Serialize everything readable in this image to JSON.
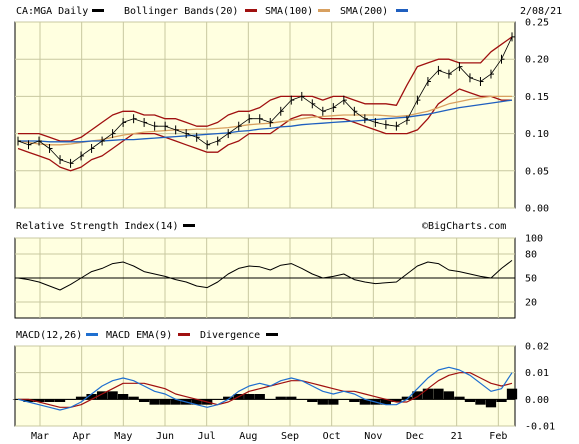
{
  "chart_data": [
    {
      "type": "line",
      "title": "CA:MGA Daily",
      "date": "2/08/21",
      "legend": [
        {
          "name": "Bollinger Bands(20)",
          "color": "#000000"
        },
        {
          "name": "SMA(100)",
          "color": "#a01010"
        },
        {
          "name": "SMA(200)",
          "color": "#d8a060"
        },
        {
          "name": "",
          "color": "#1f5fbf"
        }
      ],
      "ylim": [
        0.0,
        0.25
      ],
      "y_ticks": [
        "0.25",
        "0.20",
        "0.15",
        "0.10",
        "0.05",
        "0.00"
      ],
      "y_tick_values": [
        0.25,
        0.2,
        0.15,
        0.1,
        0.05,
        0.0
      ],
      "x_months": [
        "Mar",
        "Apr",
        "May",
        "Jun",
        "Jul",
        "Aug",
        "Sep",
        "Oct",
        "Nov",
        "Dec",
        "21",
        "Feb"
      ],
      "price": [
        0.09,
        0.085,
        0.09,
        0.08,
        0.065,
        0.06,
        0.07,
        0.08,
        0.09,
        0.1,
        0.115,
        0.12,
        0.115,
        0.11,
        0.11,
        0.105,
        0.1,
        0.095,
        0.085,
        0.09,
        0.1,
        0.11,
        0.12,
        0.12,
        0.115,
        0.13,
        0.145,
        0.15,
        0.14,
        0.13,
        0.135,
        0.145,
        0.13,
        0.12,
        0.115,
        0.112,
        0.11,
        0.118,
        0.145,
        0.17,
        0.185,
        0.18,
        0.19,
        0.175,
        0.17,
        0.18,
        0.2,
        0.23
      ],
      "upper_band": [
        0.1,
        0.1,
        0.1,
        0.095,
        0.09,
        0.09,
        0.095,
        0.105,
        0.115,
        0.125,
        0.13,
        0.13,
        0.125,
        0.125,
        0.12,
        0.12,
        0.115,
        0.11,
        0.11,
        0.115,
        0.125,
        0.13,
        0.13,
        0.135,
        0.145,
        0.15,
        0.15,
        0.15,
        0.15,
        0.145,
        0.15,
        0.15,
        0.145,
        0.14,
        0.14,
        0.14,
        0.138,
        0.165,
        0.19,
        0.195,
        0.2,
        0.2,
        0.195,
        0.195,
        0.195,
        0.21,
        0.22,
        0.23
      ],
      "lower_band": [
        0.08,
        0.075,
        0.07,
        0.065,
        0.055,
        0.05,
        0.055,
        0.065,
        0.07,
        0.08,
        0.09,
        0.1,
        0.1,
        0.1,
        0.095,
        0.09,
        0.085,
        0.08,
        0.075,
        0.075,
        0.085,
        0.09,
        0.1,
        0.1,
        0.1,
        0.11,
        0.12,
        0.125,
        0.125,
        0.12,
        0.12,
        0.12,
        0.115,
        0.11,
        0.105,
        0.1,
        0.1,
        0.1,
        0.105,
        0.12,
        0.14,
        0.15,
        0.16,
        0.155,
        0.15,
        0.15,
        0.145,
        0.145
      ],
      "sma100": [
        0.09,
        0.088,
        0.086,
        0.085,
        0.085,
        0.086,
        0.088,
        0.09,
        0.092,
        0.095,
        0.098,
        0.1,
        0.102,
        0.103,
        0.104,
        0.105,
        0.105,
        0.106,
        0.106,
        0.107,
        0.108,
        0.11,
        0.112,
        0.113,
        0.114,
        0.116,
        0.118,
        0.12,
        0.122,
        0.123,
        0.124,
        0.125,
        0.125,
        0.125,
        0.125,
        0.124,
        0.123,
        0.124,
        0.127,
        0.13,
        0.135,
        0.14,
        0.143,
        0.146,
        0.148,
        0.15,
        0.15,
        0.15
      ],
      "sma200": [
        0.09,
        0.09,
        0.09,
        0.089,
        0.089,
        0.089,
        0.089,
        0.09,
        0.09,
        0.091,
        0.092,
        0.092,
        0.093,
        0.094,
        0.095,
        0.096,
        0.097,
        0.098,
        0.099,
        0.1,
        0.101,
        0.103,
        0.104,
        0.106,
        0.107,
        0.109,
        0.11,
        0.112,
        0.113,
        0.114,
        0.115,
        0.116,
        0.117,
        0.118,
        0.119,
        0.12,
        0.121,
        0.122,
        0.124,
        0.126,
        0.129,
        0.132,
        0.135,
        0.137,
        0.139,
        0.141,
        0.143,
        0.145
      ]
    },
    {
      "type": "line",
      "title": "Relative Strength Index(14)",
      "watermark": "©BigCharts.com",
      "ylim": [
        0,
        100
      ],
      "y_ticks": [
        "100",
        "80",
        "50",
        "20"
      ],
      "y_tick_values": [
        100,
        80,
        50,
        20
      ],
      "reference_line": 50,
      "rsi": [
        50,
        48,
        45,
        40,
        35,
        42,
        50,
        58,
        62,
        68,
        70,
        65,
        58,
        55,
        52,
        48,
        45,
        40,
        38,
        45,
        55,
        62,
        65,
        64,
        60,
        66,
        68,
        62,
        55,
        50,
        52,
        55,
        48,
        45,
        43,
        44,
        45,
        55,
        65,
        70,
        68,
        60,
        58,
        55,
        52,
        50,
        62,
        72
      ]
    },
    {
      "type": "line",
      "title": "MACD(12,26)",
      "legend": [
        {
          "name": "MACD(12,26)",
          "color": "#1f6fd0"
        },
        {
          "name": "MACD EMA(9)",
          "color": "#a01010"
        },
        {
          "name": "Divergence",
          "color": "#000000"
        }
      ],
      "ylim": [
        -0.01,
        0.02
      ],
      "y_ticks": [
        "0.02",
        "0.01",
        "0.00",
        "-0.01"
      ],
      "y_tick_values": [
        0.02,
        0.01,
        0.0,
        -0.01
      ],
      "macd": [
        0.0,
        -0.001,
        -0.002,
        -0.003,
        -0.004,
        -0.003,
        -0.001,
        0.002,
        0.005,
        0.007,
        0.008,
        0.007,
        0.005,
        0.003,
        0.002,
        0.0,
        -0.001,
        -0.002,
        -0.003,
        -0.002,
        0.0,
        0.003,
        0.005,
        0.006,
        0.005,
        0.007,
        0.008,
        0.007,
        0.005,
        0.003,
        0.002,
        0.003,
        0.002,
        0.0,
        -0.001,
        -0.002,
        -0.002,
        0.0,
        0.004,
        0.008,
        0.011,
        0.012,
        0.011,
        0.009,
        0.006,
        0.003,
        0.004,
        0.01
      ],
      "signal": [
        0.0,
        0.0,
        -0.001,
        -0.002,
        -0.003,
        -0.003,
        -0.002,
        0.0,
        0.002,
        0.004,
        0.006,
        0.006,
        0.006,
        0.005,
        0.004,
        0.002,
        0.001,
        0.0,
        -0.001,
        -0.002,
        -0.001,
        0.001,
        0.003,
        0.004,
        0.005,
        0.006,
        0.007,
        0.007,
        0.006,
        0.005,
        0.004,
        0.003,
        0.003,
        0.002,
        0.001,
        0.0,
        -0.001,
        -0.001,
        0.001,
        0.004,
        0.007,
        0.009,
        0.01,
        0.01,
        0.008,
        0.006,
        0.005,
        0.006
      ],
      "divergence": [
        0.0,
        -0.001,
        -0.001,
        -0.001,
        -0.001,
        0.0,
        0.001,
        0.002,
        0.003,
        0.003,
        0.002,
        0.001,
        -0.001,
        -0.002,
        -0.002,
        -0.002,
        -0.002,
        -0.002,
        -0.002,
        0.0,
        0.001,
        0.002,
        0.002,
        0.002,
        0.0,
        0.001,
        0.001,
        0.0,
        -0.001,
        -0.002,
        -0.002,
        0.0,
        -0.001,
        -0.002,
        -0.002,
        -0.002,
        -0.001,
        0.001,
        0.003,
        0.004,
        0.004,
        0.003,
        0.001,
        -0.001,
        -0.002,
        -0.003,
        -0.001,
        0.004
      ]
    }
  ]
}
